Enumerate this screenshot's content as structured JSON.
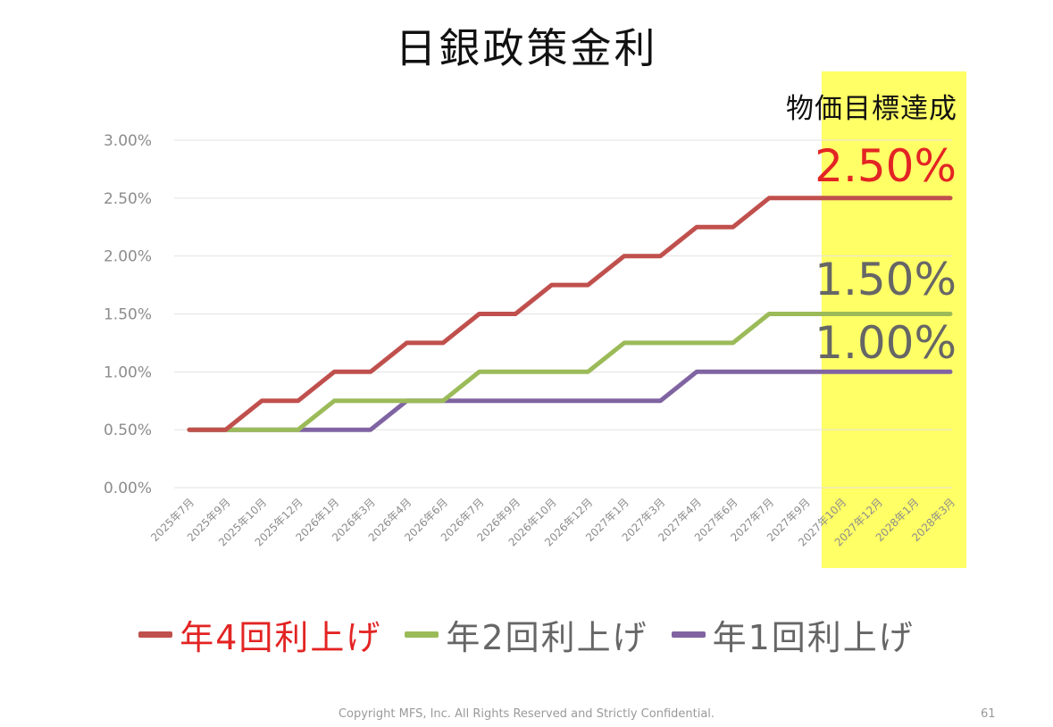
{
  "slide": {
    "footer": "Copyright MFS, Inc.  All Rights Reserved and Strictly Confidential.",
    "page_number": "61"
  },
  "chart_data": {
    "type": "line",
    "title": "日銀政策金利",
    "xlabel": "",
    "ylabel": "",
    "ylim": [
      0,
      3
    ],
    "y_ticks": [
      "0.00%",
      "0.50%",
      "1.00%",
      "1.50%",
      "2.00%",
      "2.50%",
      "3.00%"
    ],
    "grid": true,
    "legend_position": "bottom",
    "categories": [
      "2025年7月",
      "2025年9月",
      "2025年10月",
      "2025年12月",
      "2026年1月",
      "2026年3月",
      "2026年4月",
      "2026年6月",
      "2026年7月",
      "2026年9月",
      "2026年10月",
      "2026年12月",
      "2027年1月",
      "2027年3月",
      "2027年4月",
      "2027年6月",
      "2027年7月",
      "2027年9月",
      "2027年10月",
      "2027年12月",
      "2028年1月",
      "2028年3月"
    ],
    "series": [
      {
        "name": "年4回利上げ",
        "color": "#c0504d",
        "label_color": "#e32424",
        "values": [
          0.5,
          0.5,
          0.75,
          0.75,
          1.0,
          1.0,
          1.25,
          1.25,
          1.5,
          1.5,
          1.75,
          1.75,
          2.0,
          2.0,
          2.25,
          2.25,
          2.5,
          2.5,
          2.5,
          2.5,
          2.5,
          2.5
        ]
      },
      {
        "name": "年2回利上げ",
        "color": "#9bbb59",
        "label_color": "#666666",
        "values": [
          0.5,
          0.5,
          0.5,
          0.5,
          0.75,
          0.75,
          0.75,
          0.75,
          1.0,
          1.0,
          1.0,
          1.0,
          1.25,
          1.25,
          1.25,
          1.25,
          1.5,
          1.5,
          1.5,
          1.5,
          1.5,
          1.5
        ]
      },
      {
        "name": "年1回利上げ",
        "color": "#8064a2",
        "label_color": "#666666",
        "values": [
          0.5,
          0.5,
          0.5,
          0.5,
          0.5,
          0.5,
          0.75,
          0.75,
          0.75,
          0.75,
          0.75,
          0.75,
          0.75,
          0.75,
          1.0,
          1.0,
          1.0,
          1.0,
          1.0,
          1.0,
          1.0,
          1.0
        ]
      }
    ],
    "highlight": {
      "label": "物価目標達成",
      "color": "#ffff66",
      "from_category": "2027年9月",
      "to_category": "2028年3月"
    },
    "end_labels": [
      {
        "text": "2.50%",
        "value": 2.5,
        "color": "#e32424"
      },
      {
        "text": "1.50%",
        "value": 1.5,
        "color": "#666666"
      },
      {
        "text": "1.00%",
        "value": 1.0,
        "color": "#666666"
      }
    ]
  }
}
